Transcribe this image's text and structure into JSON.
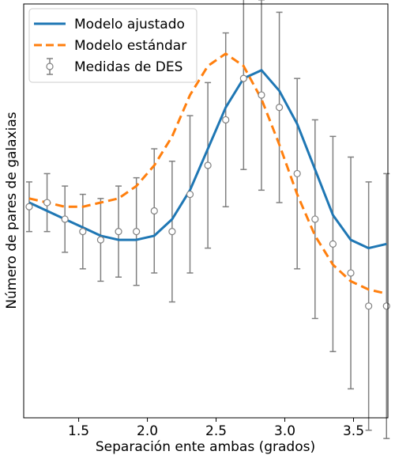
{
  "chart_data": {
    "type": "line",
    "xlabel": "Separación ente ambas (grados)",
    "ylabel": "Número de pares de galaxias",
    "xlim": [
      1.1,
      3.75
    ],
    "ylim": [
      0,
      1
    ],
    "x_ticks": [
      1.5,
      2.0,
      2.5,
      3.0,
      3.5
    ],
    "x_tick_labels": [
      "1.5",
      "2.0",
      "2.5",
      "3.0",
      "3.5"
    ],
    "y_ticks_shown": false,
    "grid": false,
    "legend_position": "top-left",
    "series": [
      {
        "name": "Modelo ajustado",
        "style": "solid",
        "color": "#1f77b4",
        "x": [
          1.14,
          1.27,
          1.4,
          1.53,
          1.66,
          1.79,
          1.92,
          2.05,
          2.18,
          2.31,
          2.44,
          2.57,
          2.7,
          2.83,
          2.96,
          3.09,
          3.22,
          3.35,
          3.48,
          3.61,
          3.74
        ],
        "y": [
          0.52,
          0.5,
          0.48,
          0.46,
          0.44,
          0.43,
          0.43,
          0.44,
          0.48,
          0.55,
          0.65,
          0.75,
          0.82,
          0.84,
          0.79,
          0.71,
          0.6,
          0.49,
          0.43,
          0.41,
          0.42
        ]
      },
      {
        "name": "Modelo estándar",
        "style": "dashed",
        "color": "#ff7f0e",
        "x": [
          1.14,
          1.27,
          1.4,
          1.53,
          1.66,
          1.79,
          1.92,
          2.05,
          2.18,
          2.31,
          2.44,
          2.57,
          2.7,
          2.83,
          2.96,
          3.09,
          3.22,
          3.35,
          3.48,
          3.61,
          3.74
        ],
        "y": [
          0.53,
          0.52,
          0.51,
          0.51,
          0.52,
          0.53,
          0.56,
          0.61,
          0.68,
          0.78,
          0.85,
          0.88,
          0.85,
          0.77,
          0.66,
          0.54,
          0.44,
          0.37,
          0.33,
          0.31,
          0.3
        ]
      }
    ],
    "measurements": {
      "name": "Medidas de DES",
      "color": "#808080",
      "x": [
        1.14,
        1.27,
        1.4,
        1.53,
        1.66,
        1.79,
        1.92,
        2.05,
        2.18,
        2.31,
        2.44,
        2.57,
        2.7,
        2.83,
        2.96,
        3.09,
        3.22,
        3.35,
        3.48,
        3.61,
        3.74
      ],
      "y": [
        0.51,
        0.52,
        0.48,
        0.45,
        0.43,
        0.45,
        0.45,
        0.5,
        0.45,
        0.54,
        0.61,
        0.72,
        0.82,
        0.78,
        0.75,
        0.59,
        0.48,
        0.42,
        0.35,
        0.27,
        0.27
      ],
      "yerr_low": [
        0.06,
        0.07,
        0.08,
        0.09,
        0.1,
        0.11,
        0.13,
        0.15,
        0.17,
        0.19,
        0.2,
        0.21,
        0.22,
        0.23,
        0.23,
        0.23,
        0.24,
        0.26,
        0.28,
        0.3,
        0.32
      ],
      "yerr_high": [
        0.06,
        0.07,
        0.08,
        0.09,
        0.1,
        0.11,
        0.13,
        0.15,
        0.17,
        0.19,
        0.2,
        0.21,
        0.22,
        0.23,
        0.23,
        0.23,
        0.24,
        0.26,
        0.28,
        0.3,
        0.32
      ]
    }
  }
}
